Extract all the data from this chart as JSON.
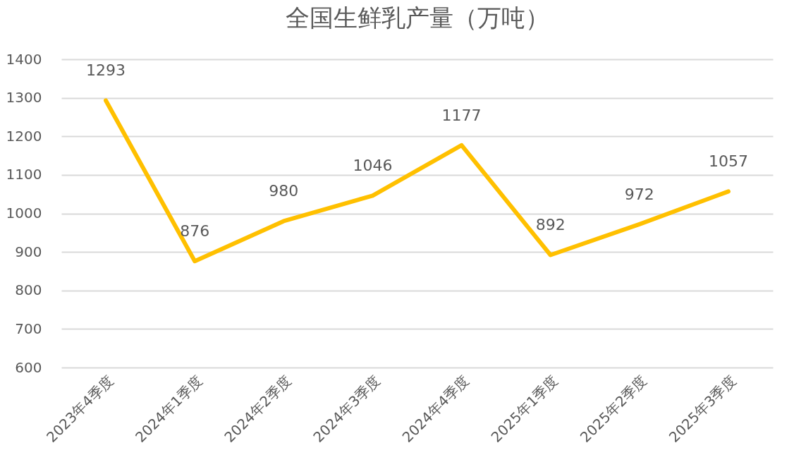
{
  "chart_data": {
    "type": "line",
    "title": "全国生鲜乳产量（万吨）",
    "categories": [
      "2023年4季度",
      "2024年1季度",
      "2024年2季度",
      "2024年3季度",
      "2024年4季度",
      "2025年1季度",
      "2025年2季度",
      "2025年3季度"
    ],
    "series": [
      {
        "color": "#ffc000",
        "values": [
          1293,
          876,
          980,
          1046,
          1177,
          892,
          972,
          1057
        ]
      }
    ],
    "ylim": [
      600,
      1400
    ],
    "yticks": [
      600,
      700,
      800,
      900,
      1000,
      1100,
      1200,
      1300,
      1400
    ],
    "grid": "y",
    "marker": "none",
    "line_style": "solid",
    "data_labels": true
  }
}
